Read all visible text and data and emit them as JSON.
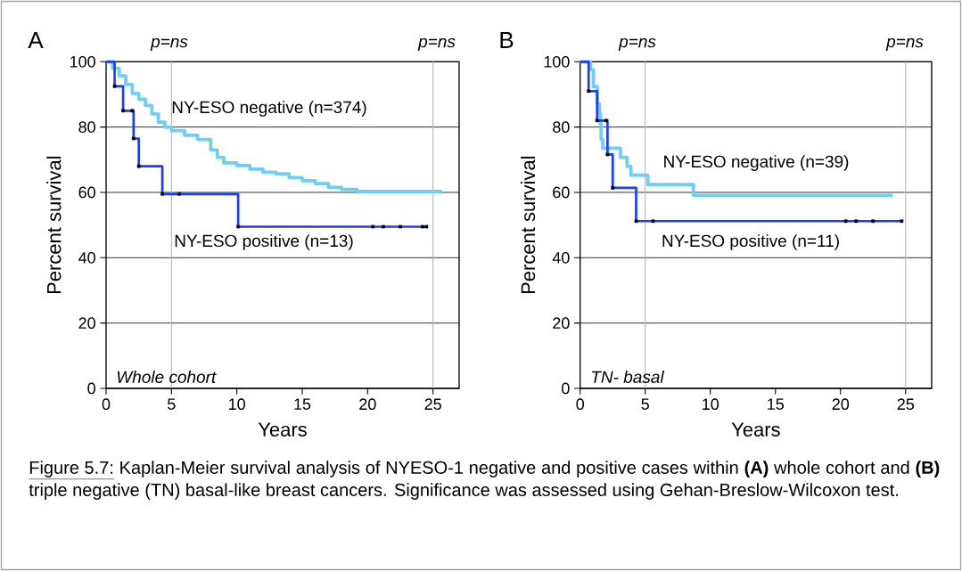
{
  "chart_data": [
    {
      "type": "step",
      "title": "A",
      "xlabel": "Years",
      "ylabel": "Percent survival",
      "xlim": [
        0,
        27
      ],
      "ylim": [
        0,
        100
      ],
      "xticks": [
        0,
        5,
        10,
        15,
        20,
        25
      ],
      "yticks": [
        0,
        20,
        40,
        60,
        80,
        100
      ],
      "grid": "y",
      "ref_lines": [
        {
          "axis": "x",
          "value": 5,
          "color": "#b4b4b4"
        },
        {
          "axis": "x",
          "value": 25,
          "color": "#b4b4b4"
        }
      ],
      "series": [
        {
          "name": "NY-ESO negative (n=374)",
          "color": "#6dcff6",
          "x": [
            0,
            0.5,
            1,
            1.5,
            2,
            2.5,
            3,
            3.5,
            4,
            4.5,
            5,
            6,
            7,
            8,
            8.5,
            9,
            10,
            11,
            12,
            13,
            14,
            15,
            16,
            17,
            18,
            19.2,
            25.7
          ],
          "values": [
            100,
            98,
            95.7,
            93,
            90.3,
            88.5,
            86.6,
            84,
            81.5,
            80,
            78.9,
            77.5,
            76.2,
            73,
            70.7,
            69,
            68.2,
            67.1,
            66.2,
            65.7,
            64.5,
            63.6,
            62.7,
            61.5,
            60.9,
            60.3,
            60.3
          ]
        },
        {
          "name": "NY-ESO positive (n=13)",
          "color": "#1a3cff",
          "x": [
            0,
            0.65,
            1.3,
            2.1,
            2.5,
            4.3,
            10.1,
            24.6
          ],
          "values": [
            100,
            92.5,
            85,
            76.5,
            68,
            59.5,
            49.5,
            49.5
          ]
        },
        {
          "type": "scatter",
          "marker": "square",
          "color": "#000000",
          "x": [
            0.65,
            1.3,
            2.0,
            2.1,
            2.5,
            4.3,
            5.6,
            10.1,
            20.4,
            21.2,
            22.5,
            24.2,
            24.5
          ],
          "values": [
            92.5,
            85,
            85,
            76.5,
            68,
            59.5,
            59.5,
            49.5,
            49.5,
            49.5,
            49.5,
            49.5,
            49.5
          ]
        }
      ],
      "annotations": [
        "p=ns",
        "p=ns",
        "Whole cohort"
      ]
    },
    {
      "type": "step",
      "title": "B",
      "xlabel": "Years",
      "ylabel": "Percent survival",
      "xlim": [
        0,
        27
      ],
      "ylim": [
        0,
        100
      ],
      "xticks": [
        0,
        5,
        10,
        15,
        20,
        25
      ],
      "yticks": [
        0,
        20,
        40,
        60,
        80,
        100
      ],
      "grid": "y",
      "ref_lines": [
        {
          "axis": "x",
          "value": 5,
          "color": "#b4b4b4"
        },
        {
          "axis": "x",
          "value": 25,
          "color": "#b4b4b4"
        }
      ],
      "series": [
        {
          "name": "NY-ESO negative (n=39)",
          "color": "#6dcff6",
          "x": [
            0,
            0.8,
            1.02,
            1.32,
            1.48,
            1.55,
            1.61,
            1.73,
            3.1,
            3.6,
            3.9,
            5.2,
            8.7,
            24.0
          ],
          "values": [
            100,
            97.5,
            92.4,
            87.1,
            84.4,
            80.7,
            76.2,
            73.5,
            70.7,
            68,
            65.3,
            62.4,
            59.1,
            59.1
          ]
        },
        {
          "name": "NY-ESO positive (n=11)",
          "color": "#1a3cff",
          "x": [
            0,
            0.65,
            1.3,
            2.1,
            2.5,
            4.3,
            24.7
          ],
          "values": [
            100,
            91,
            82,
            71.6,
            61.4,
            51.2,
            51.2
          ]
        },
        {
          "type": "scatter",
          "marker": "square",
          "color": "#000000",
          "x": [
            0.65,
            1.3,
            2.0,
            2.1,
            2.5,
            4.3,
            5.6,
            20.4,
            21.2,
            22.5,
            24.7
          ],
          "values": [
            91,
            82,
            82,
            71.6,
            61.4,
            51.2,
            51.2,
            51.2,
            51.2,
            51.2,
            51.2
          ]
        }
      ],
      "annotations": [
        "p=ns",
        "p=ns",
        "TN- basal",
        "Figure 5.7:",
        "Kaplan-Meier survival analysis of NYESO-1 negative and positive cases within **(A)** whole cohort and **(B)** triple negative (TN) basal-like breast cancers. Significance was assessed using Gehan-Breslow-Wilcoxon test."
      ]
    }
  ]
}
